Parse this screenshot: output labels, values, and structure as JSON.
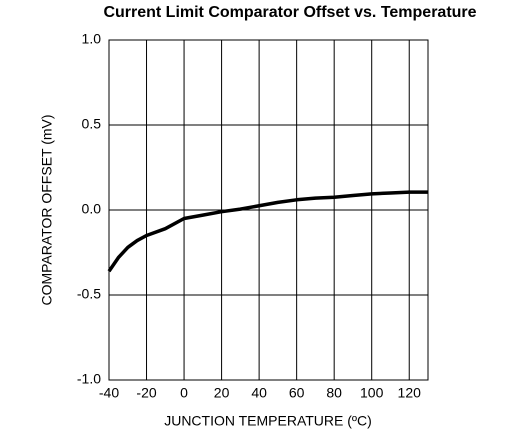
{
  "chart_data": {
    "type": "line",
    "title": "Current Limit Comparator Offset vs. Temperature",
    "xlabel": "JUNCTION TEMPERATURE (ºC)",
    "ylabel": "COMPARATOR OFFSET (mV)",
    "x": [
      -40,
      -35,
      -30,
      -25,
      -20,
      -10,
      0,
      10,
      20,
      30,
      40,
      50,
      60,
      70,
      80,
      90,
      100,
      110,
      120,
      130
    ],
    "series": [
      {
        "name": "offset",
        "color": "#000000",
        "values": [
          -0.36,
          -0.28,
          -0.22,
          -0.18,
          -0.15,
          -0.11,
          -0.05,
          -0.03,
          -0.01,
          0.005,
          0.025,
          0.045,
          0.06,
          0.07,
          0.075,
          0.085,
          0.095,
          0.1,
          0.105,
          0.105
        ]
      }
    ],
    "xlim": [
      -40,
      130
    ],
    "xticks": [
      -40,
      -20,
      0,
      20,
      40,
      60,
      80,
      100,
      120
    ],
    "ylim": [
      -1,
      1
    ],
    "yticks": [
      {
        "value": -1,
        "label": "-1.0"
      },
      {
        "value": -0.5,
        "label": "-0.5"
      },
      {
        "value": 0,
        "label": "0.0"
      },
      {
        "value": 0.5,
        "label": "0.5"
      },
      {
        "value": 1,
        "label": "1.0"
      }
    ],
    "grid": true
  }
}
